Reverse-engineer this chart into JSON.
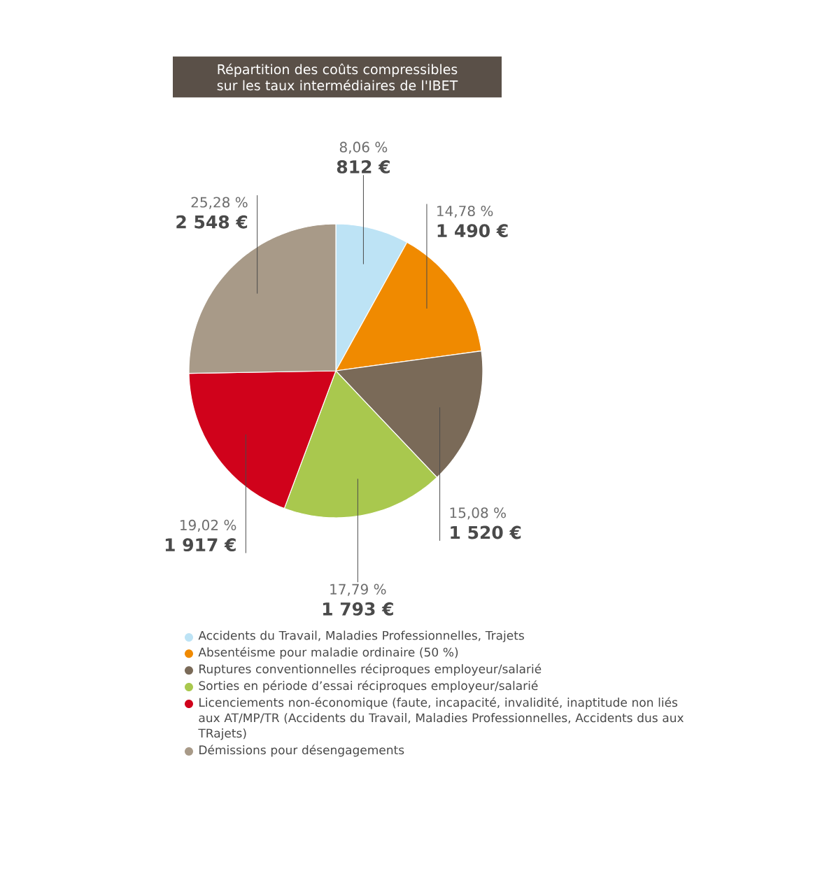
{
  "chart_data": {
    "type": "pie",
    "title": "Répartition des coûts compressibles sur les taux intermédiaires de l'IBET",
    "categories": [
      "Accidents du Travail, Maladies Professionnelles, Trajets",
      "Absentéisme pour maladie ordinaire (50 %)",
      "Ruptures conventionnelles réciproques employeur/salarié",
      "Sorties en période d’essai réciproques employeur/salarié",
      "Licenciements non-économique (faute, incapacité, invalidité, inaptitude non liés aux AT/MP/TR (Accidents du Travail, Maladies Professionnelles, Accidents dus aux TRajets)",
      "Démissions pour désengagements"
    ],
    "values": [
      812,
      1490,
      1520,
      1793,
      1917,
      2548
    ],
    "value_labels": [
      "812 €",
      "1 490 €",
      "1 520 €",
      "1 793 €",
      "1 917 €",
      "2 548 €"
    ],
    "annotations": [
      "8,06 %",
      "14,78 %",
      "15,08 %",
      "17,79 %",
      "19,02 %",
      "25,28 %"
    ],
    "colors": [
      "#bde3f5",
      "#f08a00",
      "#7a6a58",
      "#a9c84e",
      "#d0021b",
      "#a89a88"
    ],
    "legend": "bottom"
  }
}
